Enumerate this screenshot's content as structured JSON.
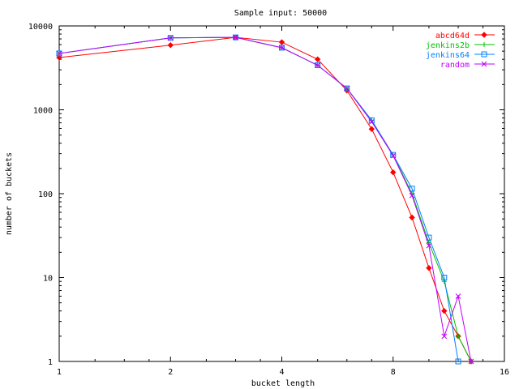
{
  "chart_data": {
    "type": "line",
    "title": "Sample input: 50000",
    "xlabel": "bucket length",
    "ylabel": "number of buckets",
    "x_scale": "log2",
    "y_scale": "log10",
    "xlim": [
      1,
      16
    ],
    "ylim": [
      1,
      10000
    ],
    "xticks": [
      1,
      2,
      4,
      8,
      16
    ],
    "xtick_labels": [
      "1",
      "2",
      "4",
      "8",
      "16"
    ],
    "yticks": [
      1,
      10,
      100,
      1000,
      10000
    ],
    "ytick_labels": [
      "1",
      "10",
      "100",
      "1000",
      "10000"
    ],
    "grid": false,
    "legend_position": "top-right",
    "series": [
      {
        "name": "abcd64d",
        "color": "#ff0000",
        "marker": "diamond",
        "points": [
          [
            1,
            4200
          ],
          [
            2,
            5900
          ],
          [
            3,
            7300
          ],
          [
            4,
            6400
          ],
          [
            5,
            4000
          ],
          [
            6,
            1700
          ],
          [
            7,
            590
          ],
          [
            8,
            180
          ],
          [
            9,
            52
          ],
          [
            10,
            13
          ],
          [
            11,
            4
          ],
          [
            12,
            2
          ],
          [
            13,
            1
          ]
        ]
      },
      {
        "name": "jenkins2b",
        "color": "#00c000",
        "marker": "plus",
        "points": [
          [
            1,
            4700
          ],
          [
            2,
            7200
          ],
          [
            3,
            7300
          ],
          [
            4,
            5500
          ],
          [
            5,
            3400
          ],
          [
            6,
            1800
          ],
          [
            7,
            750
          ],
          [
            8,
            290
          ],
          [
            9,
            100
          ],
          [
            10,
            26
          ],
          [
            11,
            9
          ],
          [
            12,
            2
          ],
          [
            13,
            1
          ]
        ]
      },
      {
        "name": "jenkins64",
        "color": "#0080ff",
        "marker": "square",
        "points": [
          [
            1,
            4700
          ],
          [
            2,
            7200
          ],
          [
            3,
            7300
          ],
          [
            4,
            5500
          ],
          [
            5,
            3400
          ],
          [
            6,
            1800
          ],
          [
            7,
            750
          ],
          [
            8,
            290
          ],
          [
            9,
            115
          ],
          [
            10,
            30
          ],
          [
            11,
            10
          ],
          [
            12,
            1
          ]
        ]
      },
      {
        "name": "random",
        "color": "#c000ff",
        "marker": "x",
        "points": [
          [
            1,
            4700
          ],
          [
            2,
            7200
          ],
          [
            3,
            7300
          ],
          [
            4,
            5500
          ],
          [
            5,
            3400
          ],
          [
            6,
            1800
          ],
          [
            7,
            720
          ],
          [
            8,
            285
          ],
          [
            9,
            95
          ],
          [
            10,
            24
          ],
          [
            11,
            2
          ],
          [
            12,
            6
          ],
          [
            13,
            1
          ]
        ]
      }
    ]
  }
}
